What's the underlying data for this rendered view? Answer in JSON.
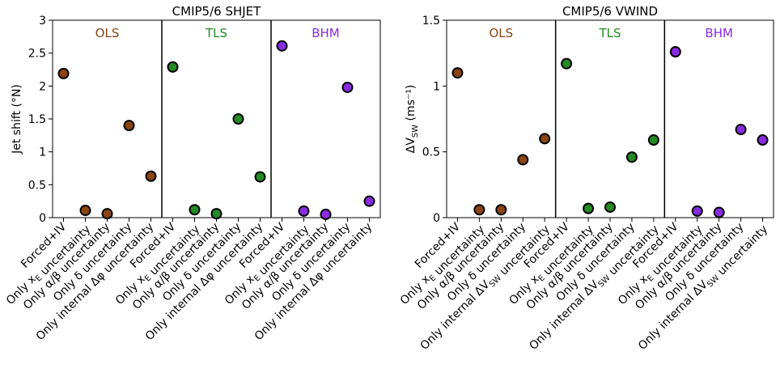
{
  "chart_data": [
    {
      "type": "scatter",
      "title": "CMIP5/6 SHJET",
      "ylabel": "Jet shift (°N)",
      "ylim": [
        0,
        3
      ],
      "yticks": [
        0,
        0.5,
        1,
        1.5,
        2,
        2.5,
        3
      ],
      "ytick_labels": [
        "0",
        "0.5",
        "1",
        "1.5",
        "2",
        "2.5",
        "3"
      ],
      "grid": false,
      "categories": [
        "Forced+IV",
        "Only x_E uncertainty",
        "Only α/β uncertainty",
        "Only δ uncertainty",
        "Only internal Δφ uncertainty"
      ],
      "category_labels": [
        "Forced+IV",
        "Only xE uncertainty",
        "Only α/β uncertainty",
        "Only δ uncertainty",
        "Only internal Δϕ uncertainty"
      ],
      "groups": [
        {
          "name": "OLS",
          "color": "#8B4513",
          "values": [
            2.19,
            0.11,
            0.06,
            1.4,
            0.63
          ]
        },
        {
          "name": "TLS",
          "color": "#228B22",
          "values": [
            2.29,
            0.12,
            0.06,
            1.5,
            0.62
          ]
        },
        {
          "name": "BHM",
          "color": "#8A2BE2",
          "values": [
            2.61,
            0.1,
            0.05,
            1.98,
            0.25
          ]
        }
      ]
    },
    {
      "type": "scatter",
      "title": "CMIP5/6 VWIND",
      "ylabel": "ΔVSW (ms⁻¹)",
      "ylim": [
        0,
        1.5
      ],
      "yticks": [
        0,
        0.5,
        1,
        1.5
      ],
      "ytick_labels": [
        "0",
        "0.5",
        "1",
        "1.5"
      ],
      "grid": false,
      "categories": [
        "Forced+IV",
        "Only x_E uncertainty",
        "Only α/β uncertainty",
        "Only δ uncertainty",
        "Only internal ΔV_SW uncertainty"
      ],
      "category_labels": [
        "Forced+IV",
        "Only xE uncertainty",
        "Only α/β uncertainty",
        "Only δ uncertainty",
        "Only internal ΔVSW uncertainty"
      ],
      "groups": [
        {
          "name": "OLS",
          "color": "#8B4513",
          "values": [
            1.1,
            0.06,
            0.06,
            0.44,
            0.6
          ]
        },
        {
          "name": "TLS",
          "color": "#228B22",
          "values": [
            1.17,
            0.07,
            0.08,
            0.46,
            0.59
          ]
        },
        {
          "name": "BHM",
          "color": "#8A2BE2",
          "values": [
            1.26,
            0.05,
            0.04,
            0.67,
            0.59
          ]
        }
      ]
    }
  ]
}
